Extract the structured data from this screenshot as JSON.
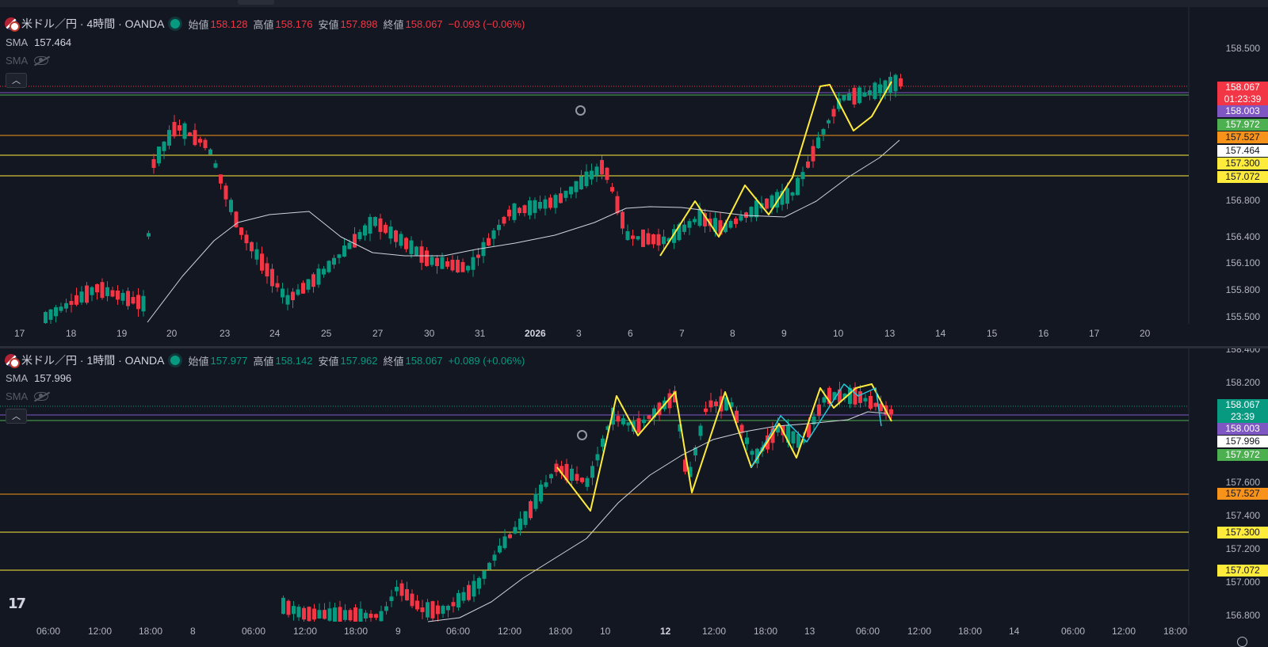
{
  "charts": [
    {
      "symbol": "米ドル／円 · 4時間 · OANDA",
      "ohlc": {
        "open_label": "始値",
        "open": "158.128",
        "high_label": "高値",
        "high": "158.176",
        "low_label": "安値",
        "low": "157.898",
        "close_label": "終値",
        "close": "158.067",
        "change": "−0.093 (−0.06%)"
      },
      "sma_label": "SMA",
      "sma_value": "157.464",
      "sma2_label": "SMA",
      "price_axis": [
        "158.500",
        "156.800",
        "156.400",
        "156.100",
        "155.800",
        "155.500"
      ],
      "time_axis": [
        "17",
        "18",
        "19",
        "20",
        "23",
        "24",
        "25",
        "27",
        "30",
        "31",
        "2026",
        "3",
        "6",
        "7",
        "8",
        "9",
        "10",
        "13",
        "14",
        "15",
        "16",
        "17",
        "20"
      ],
      "price_tags": {
        "last": "158.067",
        "countdown": "01:23:39",
        "purple": "158.003",
        "green": "157.972",
        "orange": "157.527",
        "sma": "157.464",
        "yellow1": "157.300",
        "yellow2": "157.072"
      }
    },
    {
      "symbol": "米ドル／円 · 1時間 · OANDA",
      "ohlc": {
        "open_label": "始値",
        "open": "157.977",
        "high_label": "高値",
        "high": "158.142",
        "low_label": "安値",
        "low": "157.962",
        "close_label": "終値",
        "close": "158.067",
        "change": "+0.089 (+0.06%)"
      },
      "sma_label": "SMA",
      "sma_value": "157.996",
      "sma2_label": "SMA",
      "price_axis": [
        "158.400",
        "158.200",
        "157.600",
        "157.400",
        "157.200",
        "157.000",
        "156.800"
      ],
      "time_axis": [
        "06:00",
        "12:00",
        "18:00",
        "8",
        "06:00",
        "12:00",
        "18:00",
        "9",
        "06:00",
        "12:00",
        "18:00",
        "10",
        "12",
        "12:00",
        "18:00",
        "13",
        "06:00",
        "12:00",
        "18:00",
        "14",
        "06:00",
        "12:00",
        "18:00"
      ],
      "price_tags": {
        "last": "158.067",
        "countdown": "23:39",
        "purple": "158.003",
        "sma": "157.996",
        "green": "157.972",
        "orange": "157.527",
        "yellow1": "157.300",
        "yellow2": "157.072"
      }
    }
  ],
  "colors": {
    "up": "#089981",
    "down": "#f23645",
    "sma": "#d1d4dc",
    "orange": "#f7931a",
    "yellow": "#ffeb3b",
    "purple": "#7e57c2",
    "green_tag": "#4caf50",
    "cyan": "#26c6da",
    "background": "#131722"
  },
  "icons": [
    "flag-icon",
    "market-open-dot-icon",
    "eye-hidden-icon",
    "collapse-chevron-icon",
    "alarm-icon",
    "tradingview-logo-icon",
    "settings-icon"
  ]
}
